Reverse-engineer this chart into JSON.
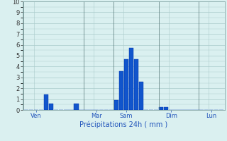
{
  "title": "Précipitations 24h ( mm )",
  "background_color": "#daf0f0",
  "grid_color": "#aacccc",
  "bar_color": "#1155cc",
  "bar_edge_color": "#0033aa",
  "ylim": [
    0,
    10
  ],
  "yticks": [
    0,
    1,
    2,
    3,
    4,
    5,
    6,
    7,
    8,
    9,
    10
  ],
  "day_labels": [
    "Ven",
    "Mar",
    "Sam",
    "Dim",
    "Lun"
  ],
  "day_positions": [
    2,
    14,
    20,
    29,
    37
  ],
  "day_line_positions": [
    0,
    12,
    18,
    27,
    35
  ],
  "num_bars": 40,
  "bar_values": [
    0,
    0,
    0,
    0,
    1.4,
    0.6,
    0,
    0,
    0,
    0,
    0.6,
    0,
    0,
    0,
    0,
    0,
    0,
    0,
    0.9,
    3.6,
    4.7,
    5.7,
    4.7,
    2.6,
    0,
    0,
    0,
    0.25,
    0.25,
    0,
    0,
    0,
    0,
    0,
    0,
    0,
    0,
    0,
    0,
    0
  ]
}
